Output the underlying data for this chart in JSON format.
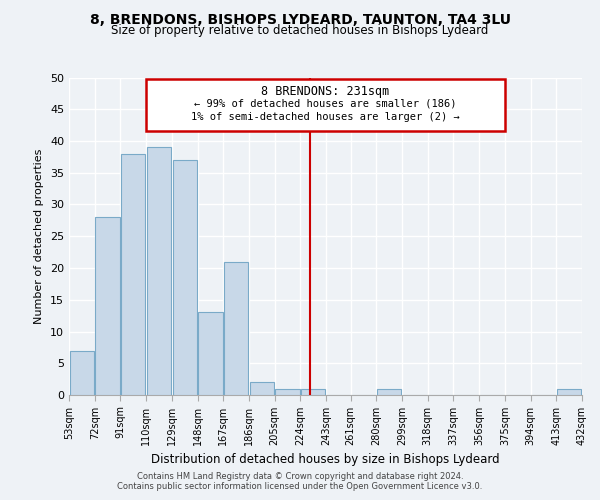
{
  "title": "8, BRENDONS, BISHOPS LYDEARD, TAUNTON, TA4 3LU",
  "subtitle": "Size of property relative to detached houses in Bishops Lydeard",
  "xlabel": "Distribution of detached houses by size in Bishops Lydeard",
  "ylabel": "Number of detached properties",
  "bar_color": "#c8d8e8",
  "bar_edge_color": "#7aaac8",
  "annotation_title": "8 BRENDONS: 231sqm",
  "annotation_line1": "← 99% of detached houses are smaller (186)",
  "annotation_line2": "1% of semi-detached houses are larger (2) →",
  "annotation_box_color": "#ffffff",
  "annotation_box_edge": "#cc0000",
  "vline_color": "#cc0000",
  "vline_x": 231,
  "footer1": "Contains HM Land Registry data © Crown copyright and database right 2024.",
  "footer2": "Contains public sector information licensed under the Open Government Licence v3.0.",
  "bin_edges": [
    53,
    72,
    91,
    110,
    129,
    148,
    167,
    186,
    205,
    224,
    243,
    261,
    280,
    299,
    318,
    337,
    356,
    375,
    394,
    413,
    432
  ],
  "bin_counts": [
    7,
    28,
    38,
    39,
    37,
    13,
    21,
    2,
    1,
    1,
    0,
    0,
    1,
    0,
    0,
    0,
    0,
    0,
    0,
    1
  ],
  "ylim": [
    0,
    50
  ],
  "yticks": [
    0,
    5,
    10,
    15,
    20,
    25,
    30,
    35,
    40,
    45,
    50
  ],
  "background_color": "#eef2f6",
  "plot_background": "#eef2f6",
  "grid_color": "#ffffff",
  "title_fontsize": 10,
  "subtitle_fontsize": 8.5,
  "ylabel_fontsize": 8,
  "xlabel_fontsize": 8.5,
  "ytick_fontsize": 8,
  "xtick_fontsize": 7,
  "footer_fontsize": 6,
  "ann_title_fontsize": 8.5,
  "ann_text_fontsize": 7.5
}
